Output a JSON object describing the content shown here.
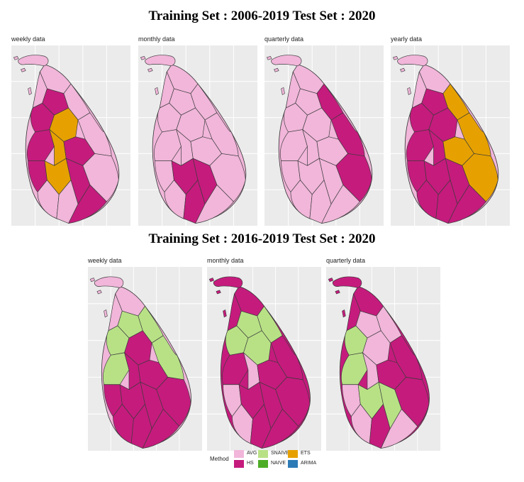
{
  "sections": [
    {
      "title": "Training Set : 2006-2019 Test Set : 2020"
    },
    {
      "title": "Training Set : 2016-2019 Test Set : 2020"
    }
  ],
  "panels": [
    {
      "label": "weekly data",
      "scheme": "top_weekly"
    },
    {
      "label": "monthly data",
      "scheme": "top_monthly"
    },
    {
      "label": "quarterly data",
      "scheme": "top_quarterly"
    },
    {
      "label": "yearly data",
      "scheme": "top_yearly"
    },
    {
      "label": "weekly data",
      "scheme": "bot_weekly"
    },
    {
      "label": "monthly data",
      "scheme": "bot_monthly"
    },
    {
      "label": "quarterly data",
      "scheme": "bot_quarterly"
    }
  ],
  "legend": {
    "title": "Method",
    "items": [
      {
        "label": "AVG",
        "color": "#f1b6da"
      },
      {
        "label": "HS",
        "color": "#c51b7d"
      },
      {
        "label": "SNAIVE",
        "color": "#b8e186"
      },
      {
        "label": "NAIVE",
        "color": "#4dac26"
      },
      {
        "label": "ETS",
        "color": "#e6a100"
      },
      {
        "label": "ARIMA",
        "color": "#2c7bb6"
      }
    ]
  }
}
